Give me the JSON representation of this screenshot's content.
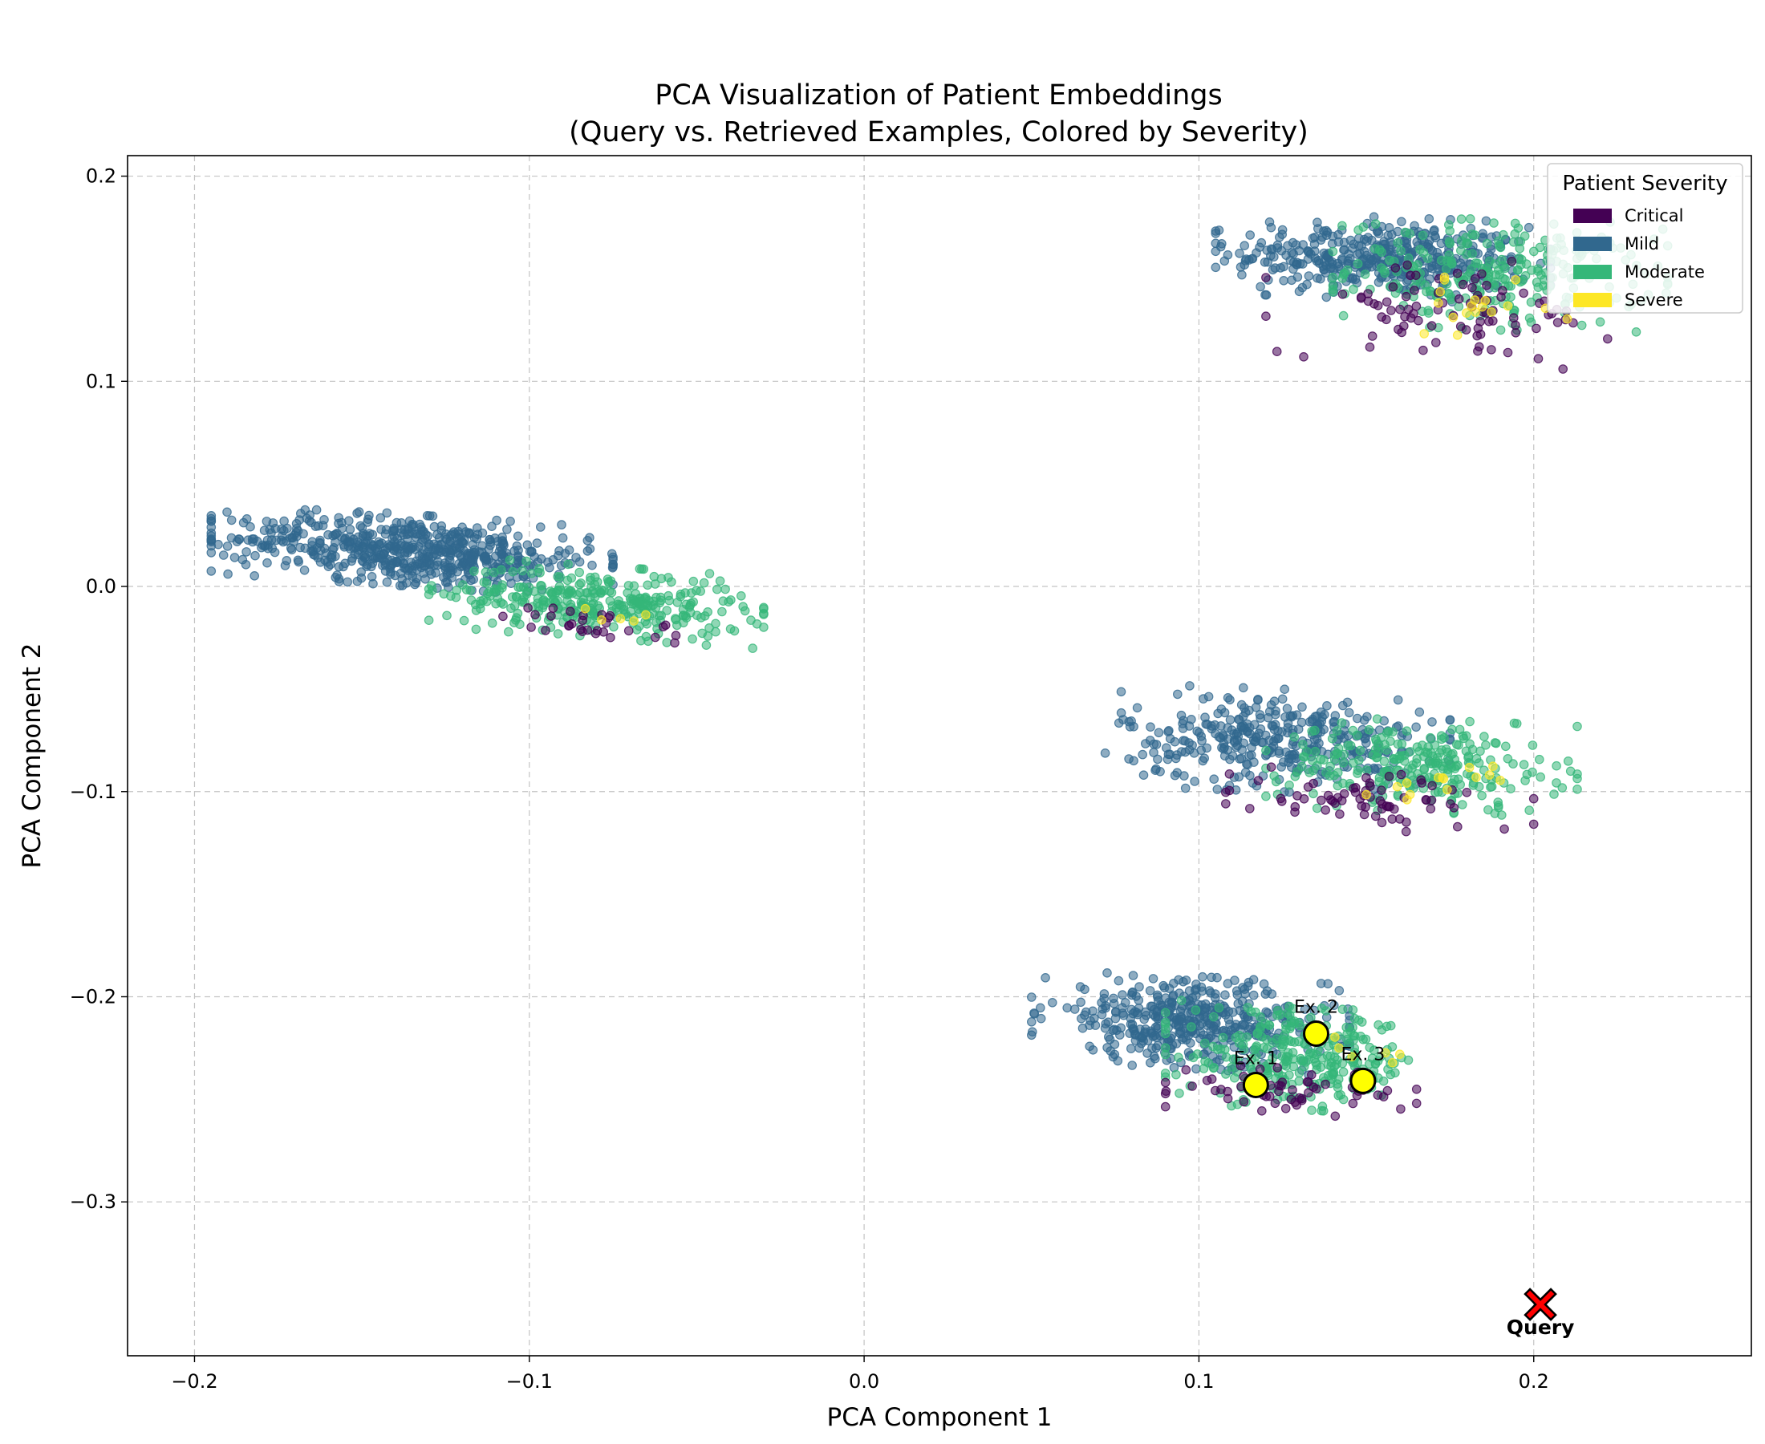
{
  "chart_data": {
    "type": "scatter",
    "title": "PCA Visualization of Patient Embeddings",
    "subtitle": "(Query vs. Retrieved Examples, Colored by Severity)",
    "xlabel": "PCA Component 1",
    "ylabel": "PCA Component 2",
    "xlim": [
      -0.22,
      0.265
    ],
    "ylim": [
      -0.375,
      0.21
    ],
    "xticks": [
      -0.2,
      -0.1,
      0.0,
      0.1,
      0.2
    ],
    "xtick_labels": [
      "−0.2",
      "−0.1",
      "0.0",
      "0.1",
      "0.2"
    ],
    "yticks": [
      -0.3,
      -0.2,
      -0.1,
      0.0,
      0.1,
      0.2
    ],
    "ytick_labels": [
      "−0.3",
      "−0.2",
      "−0.1",
      "0.0",
      "0.1",
      "0.2"
    ],
    "grid": true,
    "legend": {
      "title": "Patient Severity",
      "placement": "top-right",
      "entries": [
        {
          "label": "Critical",
          "color": "#440154"
        },
        {
          "label": "Mild",
          "color": "#31688e"
        },
        {
          "label": "Moderate",
          "color": "#35b779"
        },
        {
          "label": "Severe",
          "color": "#fde725"
        }
      ]
    },
    "clusters": [
      {
        "name": "cluster-top-right",
        "center": [
          0.165,
          0.155
        ],
        "spread": [
          0.03,
          0.012
        ],
        "series": [
          {
            "name": "Mild",
            "x_range": [
              0.105,
              0.205
            ],
            "y_range": [
              0.14,
              0.18
            ],
            "count": 420
          },
          {
            "name": "Moderate",
            "x_range": [
              0.14,
              0.24
            ],
            "y_range": [
              0.125,
              0.18
            ],
            "count": 260
          },
          {
            "name": "Critical",
            "x_range": [
              0.12,
              0.23
            ],
            "y_range": [
              0.108,
              0.16
            ],
            "count": 90
          },
          {
            "name": "Severe",
            "x_range": [
              0.16,
              0.21
            ],
            "y_range": [
              0.122,
              0.15
            ],
            "count": 18
          }
        ]
      },
      {
        "name": "cluster-left",
        "center": [
          -0.13,
          0.012
        ],
        "spread": [
          0.055,
          0.014
        ],
        "series": [
          {
            "name": "Mild",
            "x_range": [
              -0.195,
              -0.075
            ],
            "y_range": [
              0.0,
              0.035
            ],
            "count": 620
          },
          {
            "name": "Moderate",
            "x_range": [
              -0.13,
              -0.03
            ],
            "y_range": [
              -0.025,
              0.01
            ],
            "count": 330
          },
          {
            "name": "Critical",
            "x_range": [
              -0.11,
              -0.05
            ],
            "y_range": [
              -0.028,
              -0.01
            ],
            "count": 30
          },
          {
            "name": "Severe",
            "x_range": [
              -0.09,
              -0.06
            ],
            "y_range": [
              -0.02,
              -0.01
            ],
            "count": 5
          }
        ]
      },
      {
        "name": "cluster-middle-right",
        "center": [
          0.14,
          -0.08
        ],
        "spread": [
          0.035,
          0.013
        ],
        "series": [
          {
            "name": "Mild",
            "x_range": [
              0.072,
              0.175
            ],
            "y_range": [
              -0.1,
              -0.05
            ],
            "count": 360
          },
          {
            "name": "Moderate",
            "x_range": [
              0.12,
              0.213
            ],
            "y_range": [
              -0.11,
              -0.065
            ],
            "count": 260
          },
          {
            "name": "Critical",
            "x_range": [
              0.108,
              0.2
            ],
            "y_range": [
              -0.119,
              -0.09
            ],
            "count": 70
          },
          {
            "name": "Severe",
            "x_range": [
              0.15,
              0.19
            ],
            "y_range": [
              -0.105,
              -0.085
            ],
            "count": 14
          }
        ]
      },
      {
        "name": "cluster-bottom-right",
        "center": [
          0.11,
          -0.22
        ],
        "spread": [
          0.033,
          0.012
        ],
        "series": [
          {
            "name": "Mild",
            "x_range": [
              0.05,
              0.145
            ],
            "y_range": [
              -0.235,
              -0.19
            ],
            "count": 440
          },
          {
            "name": "Moderate",
            "x_range": [
              0.09,
              0.17
            ],
            "y_range": [
              -0.255,
              -0.205
            ],
            "count": 280
          },
          {
            "name": "Critical",
            "x_range": [
              0.09,
              0.165
            ],
            "y_range": [
              -0.257,
              -0.235
            ],
            "count": 60
          },
          {
            "name": "Severe",
            "x_range": [
              0.13,
              0.16
            ],
            "y_range": [
              -0.235,
              -0.215
            ],
            "count": 6
          }
        ]
      }
    ],
    "retrieved_examples": [
      {
        "label": "Ex. 1",
        "x": 0.117,
        "y": -0.243
      },
      {
        "label": "Ex. 2",
        "x": 0.135,
        "y": -0.218
      },
      {
        "label": "Ex. 3",
        "x": 0.149,
        "y": -0.241
      }
    ],
    "query": {
      "label": "Query",
      "x": 0.202,
      "y": -0.35
    }
  },
  "colors": {
    "Critical": "#440154",
    "Mild": "#31688e",
    "Moderate": "#35b779",
    "Severe": "#fde725",
    "example_fill": "#ffff00",
    "query_fill": "#ff0000"
  }
}
